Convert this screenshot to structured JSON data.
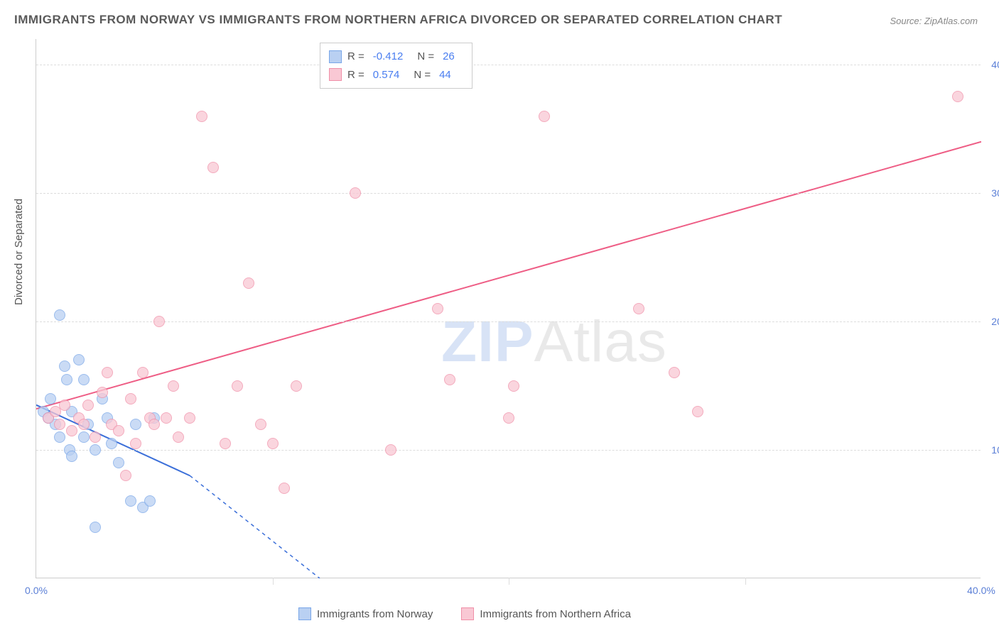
{
  "title": "IMMIGRANTS FROM NORWAY VS IMMIGRANTS FROM NORTHERN AFRICA DIVORCED OR SEPARATED CORRELATION CHART",
  "source": "Source: ZipAtlas.com",
  "watermark": {
    "part1": "ZIP",
    "part2": "Atlas"
  },
  "ylabel": "Divorced or Separated",
  "chart": {
    "type": "scatter",
    "xlim": [
      0,
      40
    ],
    "ylim": [
      0,
      42
    ],
    "xticks": [
      0,
      10,
      20,
      30,
      40
    ],
    "yticks": [
      10,
      20,
      30,
      40
    ],
    "xtick_format": "{v}.0%",
    "ytick_format": "{v}.0%",
    "grid_color": "#dddddd",
    "axis_color": "#cccccc",
    "series": [
      {
        "name": "Immigrants from Norway",
        "color_fill": "#b9d0f2",
        "color_stroke": "#79a6e8",
        "marker_size": 16,
        "r_value": "-0.412",
        "n_value": "26",
        "trend": {
          "x1": 0,
          "y1": 13.5,
          "x2": 6.5,
          "y2": 8,
          "x2_ext": 12,
          "y2_ext": 0,
          "stroke": "#3b6fd9",
          "width": 2
        },
        "points": [
          [
            0.3,
            13.0
          ],
          [
            0.5,
            12.5
          ],
          [
            0.6,
            14.0
          ],
          [
            0.8,
            12.0
          ],
          [
            1.0,
            20.5
          ],
          [
            1.0,
            11.0
          ],
          [
            1.2,
            16.5
          ],
          [
            1.3,
            15.5
          ],
          [
            1.4,
            10.0
          ],
          [
            1.5,
            13.0
          ],
          [
            1.5,
            9.5
          ],
          [
            1.8,
            17.0
          ],
          [
            2.0,
            11.0
          ],
          [
            2.0,
            15.5
          ],
          [
            2.2,
            12.0
          ],
          [
            2.5,
            10.0
          ],
          [
            2.5,
            4.0
          ],
          [
            2.8,
            14.0
          ],
          [
            3.0,
            12.5
          ],
          [
            3.2,
            10.5
          ],
          [
            3.5,
            9.0
          ],
          [
            4.0,
            6.0
          ],
          [
            4.2,
            12.0
          ],
          [
            4.5,
            5.5
          ],
          [
            4.8,
            6.0
          ],
          [
            5.0,
            12.5
          ]
        ]
      },
      {
        "name": "Immigrants from Northern Africa",
        "color_fill": "#f9c8d4",
        "color_stroke": "#f08fa8",
        "marker_size": 16,
        "r_value": "0.574",
        "n_value": "44",
        "trend": {
          "x1": 0,
          "y1": 13.2,
          "x2": 40,
          "y2": 34,
          "stroke": "#ee5d85",
          "width": 2
        },
        "points": [
          [
            0.5,
            12.5
          ],
          [
            0.8,
            13.0
          ],
          [
            1.0,
            12.0
          ],
          [
            1.2,
            13.5
          ],
          [
            1.5,
            11.5
          ],
          [
            1.8,
            12.5
          ],
          [
            2.0,
            12.0
          ],
          [
            2.2,
            13.5
          ],
          [
            2.5,
            11.0
          ],
          [
            2.8,
            14.5
          ],
          [
            3.0,
            16.0
          ],
          [
            3.2,
            12.0
          ],
          [
            3.5,
            11.5
          ],
          [
            3.8,
            8.0
          ],
          [
            4.0,
            14.0
          ],
          [
            4.2,
            10.5
          ],
          [
            4.5,
            16.0
          ],
          [
            4.8,
            12.5
          ],
          [
            5.0,
            12.0
          ],
          [
            5.2,
            20.0
          ],
          [
            5.5,
            12.5
          ],
          [
            5.8,
            15.0
          ],
          [
            6.0,
            11.0
          ],
          [
            6.5,
            12.5
          ],
          [
            7.0,
            36.0
          ],
          [
            7.5,
            32.0
          ],
          [
            8.0,
            10.5
          ],
          [
            8.5,
            15.0
          ],
          [
            9.0,
            23.0
          ],
          [
            9.5,
            12.0
          ],
          [
            10.0,
            10.5
          ],
          [
            10.5,
            7.0
          ],
          [
            11.0,
            15.0
          ],
          [
            13.5,
            30.0
          ],
          [
            15.0,
            10.0
          ],
          [
            17.0,
            21.0
          ],
          [
            17.5,
            15.5
          ],
          [
            20.0,
            12.5
          ],
          [
            20.2,
            15.0
          ],
          [
            21.5,
            36.0
          ],
          [
            25.5,
            21.0
          ],
          [
            27.0,
            16.0
          ],
          [
            28.0,
            13.0
          ],
          [
            39.0,
            37.5
          ]
        ]
      }
    ]
  },
  "bottom_legend": [
    {
      "label": "Immigrants from Norway",
      "fill": "#b9d0f2",
      "stroke": "#79a6e8"
    },
    {
      "label": "Immigrants from Northern Africa",
      "fill": "#f9c8d4",
      "stroke": "#f08fa8"
    }
  ]
}
